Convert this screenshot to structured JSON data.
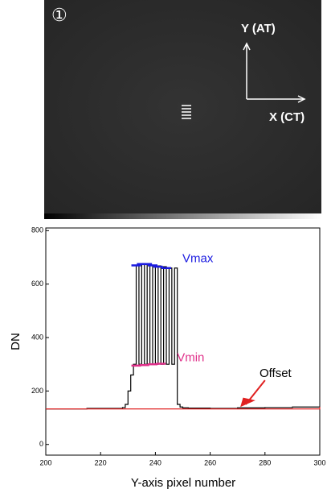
{
  "image": {
    "marker": "①",
    "y_axis_label": "Y (AT)",
    "x_axis_label": "X (CT)"
  },
  "chart_data": {
    "type": "line",
    "step": "post",
    "xlabel": "Y-axis pixel number",
    "ylabel": "DN",
    "xlim": [
      200,
      300
    ],
    "ylim": [
      -40,
      810
    ],
    "xticks": [
      200,
      220,
      240,
      260,
      280,
      300
    ],
    "yticks": [
      0,
      200,
      400,
      600,
      800
    ],
    "series": [
      {
        "color": "#000000",
        "x": [
          200,
          215,
          228,
          229,
          230,
          231,
          232,
          233,
          234,
          235,
          236,
          237,
          238,
          239,
          240,
          241,
          242,
          243,
          244,
          245,
          246,
          247,
          248,
          249,
          250,
          252,
          260,
          270,
          280,
          290,
          300
        ],
        "values": [
          133,
          135,
          138,
          150,
          200,
          260,
          300,
          670,
          300,
          675,
          300,
          675,
          300,
          670,
          300,
          668,
          300,
          665,
          300,
          660,
          300,
          660,
          150,
          140,
          137,
          136,
          135,
          137,
          138,
          140,
          140
        ]
      },
      {
        "color": "#e02020",
        "x": [
          200,
          300
        ],
        "values": [
          133,
          140
        ]
      }
    ],
    "vmax": {
      "label": "Vmax",
      "color": "#1a1ae0",
      "x": [
        233,
        235,
        237,
        239,
        241,
        244
      ],
      "values": [
        670,
        675,
        675,
        670,
        665,
        660
      ]
    },
    "vmin": {
      "label": "Vmin",
      "color": "#e0308a",
      "x": [
        233,
        236,
        239,
        242
      ],
      "values": [
        295,
        297,
        300,
        302
      ]
    },
    "offset_label": "Offset"
  }
}
